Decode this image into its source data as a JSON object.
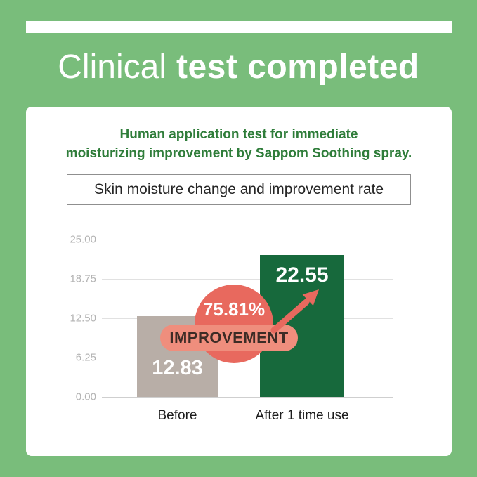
{
  "header": {
    "title_light": "Clinical",
    "title_bold": "test completed"
  },
  "card": {
    "subtitle_line1": "Human application test for immediate",
    "subtitle_line2": "moisturizing improvement by Sappom Soothing spray.",
    "box_title": "Skin moisture change and improvement rate"
  },
  "chart_data": {
    "type": "bar",
    "title": "Skin moisture change and improvement rate",
    "categories": [
      "Before",
      "After 1 time use"
    ],
    "values": [
      12.83,
      22.55
    ],
    "value_labels": [
      "12.83",
      "22.55"
    ],
    "ylim": [
      0,
      25
    ],
    "yticks": [
      "25.00",
      "18.75",
      "12.50",
      "6.25",
      "0.00"
    ],
    "grid": true,
    "legend": false,
    "bar_colors": [
      "#b8aea7",
      "#17693c"
    ],
    "annotation": {
      "percent": "75.81%",
      "label": "IMPROVEMENT",
      "arrow": "up-right"
    }
  },
  "colors": {
    "background_green": "#79bd7b",
    "card_white": "#ffffff",
    "subtitle_green": "#2f7d3a",
    "bar_before": "#b8aea7",
    "bar_after": "#17693c",
    "badge_circle": "#e8695e",
    "badge_pill": "#ef8e7d",
    "badge_label_text": "#3d2c26",
    "tick_gray": "#b3b3b3"
  }
}
